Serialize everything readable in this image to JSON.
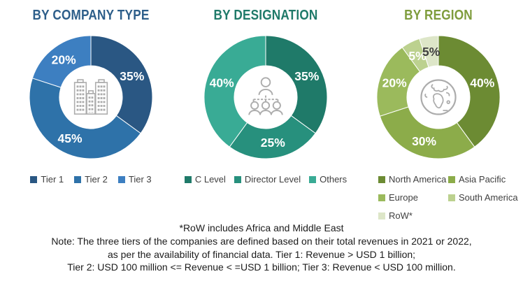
{
  "chart_data": [
    {
      "type": "pie",
      "variant": "donut",
      "title": "BY COMPANY TYPE",
      "title_color": "#2D5E8A",
      "center_icon": "buildings-icon",
      "labels": [
        "Tier 1",
        "Tier 2",
        "Tier 3"
      ],
      "values": [
        35,
        45,
        20
      ],
      "unit": "%",
      "colors": [
        "#2A5783",
        "#2E72A9",
        "#3D7FC1"
      ],
      "pct_label_colors": [
        "#FFFFFF",
        "#FFFFFF",
        "#FFFFFF"
      ],
      "start_angle_deg": 0,
      "direction": "clockwise",
      "legend_position": "bottom"
    },
    {
      "type": "pie",
      "variant": "donut",
      "title": "BY DESIGNATION",
      "title_color": "#1F7A69",
      "center_icon": "org-chart-icon",
      "labels": [
        "C Level",
        "Director Level",
        "Others"
      ],
      "values": [
        35,
        25,
        40
      ],
      "unit": "%",
      "colors": [
        "#1F7A69",
        "#27907D",
        "#39AB95"
      ],
      "pct_label_colors": [
        "#FFFFFF",
        "#FFFFFF",
        "#FFFFFF"
      ],
      "start_angle_deg": 0,
      "direction": "clockwise",
      "legend_position": "bottom"
    },
    {
      "type": "pie",
      "variant": "donut",
      "title": "BY REGION",
      "title_color": "#7E9C3C",
      "center_icon": "globe-icon",
      "labels": [
        "North America",
        "Asia Pacific",
        "Europe",
        "South America",
        "RoW*"
      ],
      "values": [
        40,
        30,
        20,
        5,
        5
      ],
      "unit": "%",
      "colors": [
        "#6C8B33",
        "#8CAC4A",
        "#9BBA5C",
        "#BCD18F",
        "#DDE6C8"
      ],
      "pct_label_colors": [
        "#FFFFFF",
        "#FFFFFF",
        "#FFFFFF",
        "#FFFFFF",
        "#3F3F3F"
      ],
      "start_angle_deg": 0,
      "direction": "clockwise",
      "legend_position": "bottom"
    }
  ],
  "footnote": "*RoW includes Africa and Middle East",
  "note_lines": [
    "Note: The three tiers of the companies are defined based on their total revenues in 2021 or 2022,",
    "as per the availability of financial data. Tier 1: Revenue > USD 1 billion;",
    "Tier 2: USD 100 million <= Revenue < =USD 1 billion; Tier 3: Revenue < USD 100 million."
  ],
  "icon_color": "#ACACAC"
}
